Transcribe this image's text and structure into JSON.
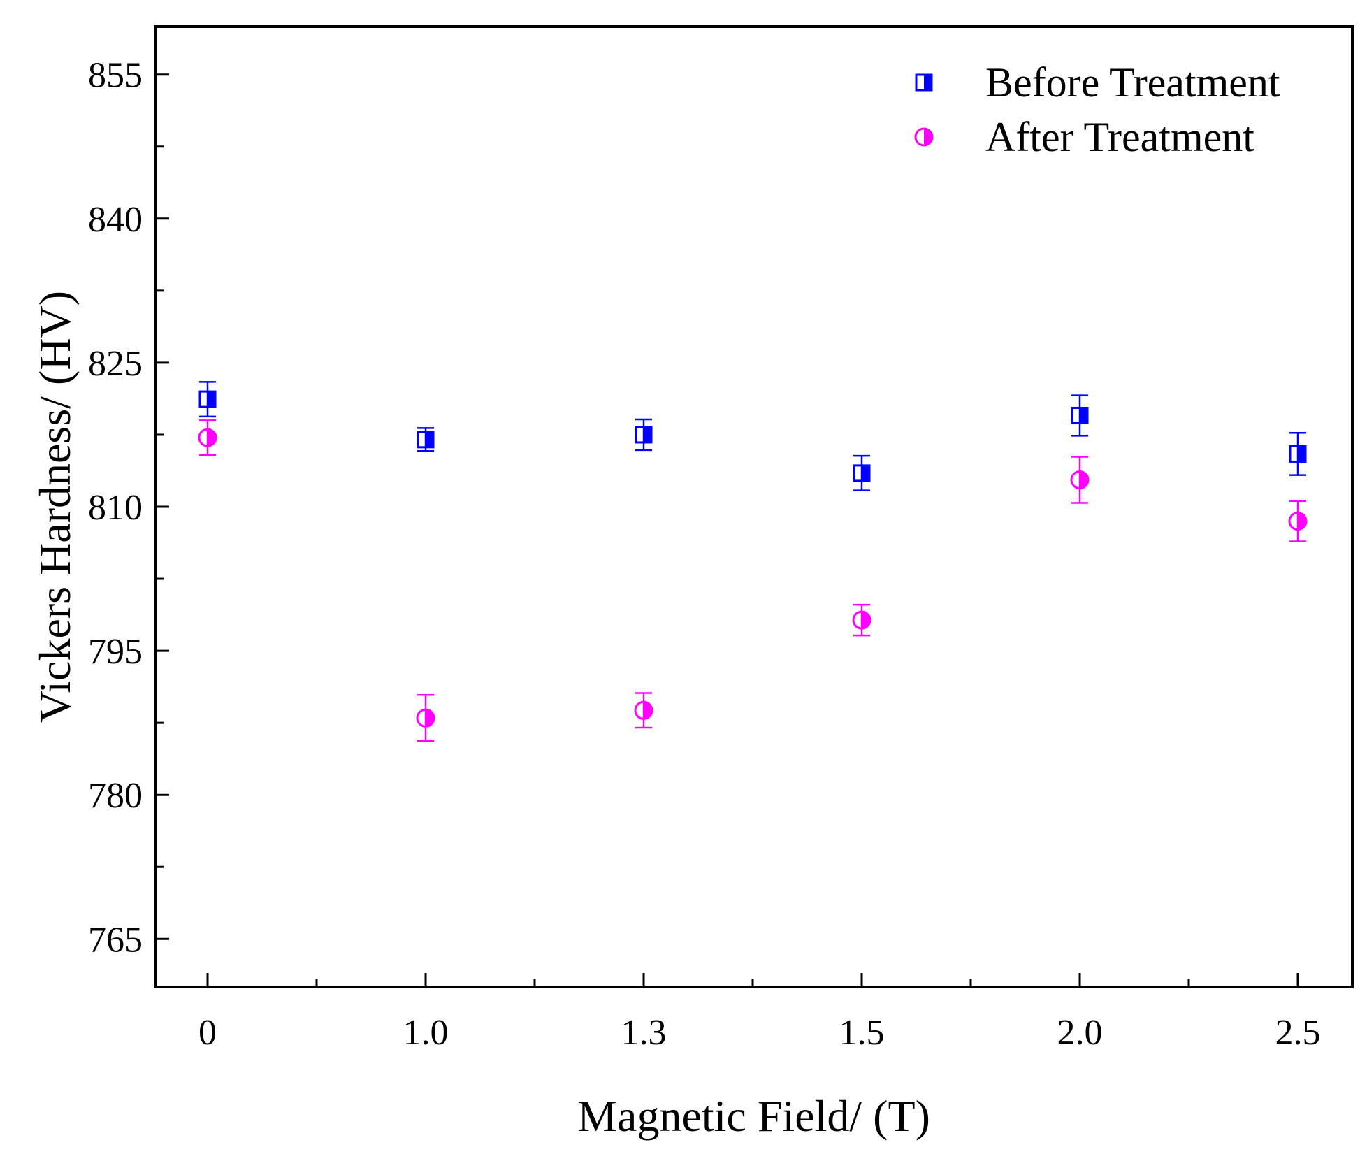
{
  "chart_data": {
    "type": "scatter",
    "title": "",
    "xlabel": "Magnetic Field/ (T)",
    "ylabel": "Vickers Hardness/ (HV)",
    "ylim": [
      760,
      860
    ],
    "yticks": [
      765,
      780,
      795,
      810,
      825,
      840,
      855
    ],
    "categories": [
      "0",
      "1.0",
      "1.3",
      "1.5",
      "2.0",
      "2.5"
    ],
    "legend_position": "top-right",
    "series": [
      {
        "name": "Before Treatment",
        "marker": "half-filled-square",
        "color": "#0000ff",
        "values": [
          821.2,
          817.0,
          817.5,
          813.5,
          819.5,
          815.5
        ],
        "errors": [
          1.8,
          1.2,
          1.6,
          1.8,
          2.1,
          2.2
        ]
      },
      {
        "name": "After Treatment",
        "marker": "half-filled-circle",
        "color": "#ff00ff",
        "values": [
          817.2,
          788.0,
          788.8,
          798.2,
          812.8,
          808.5
        ],
        "errors": [
          1.8,
          2.4,
          1.8,
          1.6,
          2.4,
          2.1
        ]
      }
    ]
  }
}
